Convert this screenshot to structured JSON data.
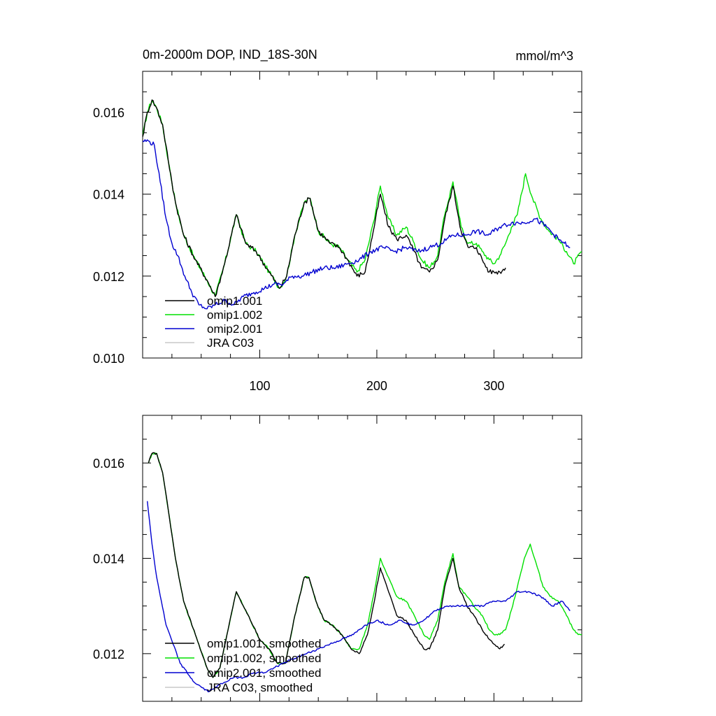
{
  "title": "0m-2000m DOP, IND_18S-30N",
  "units": "mmol/m^3",
  "colors": {
    "omip1_001": "#000000",
    "omip1_002": "#00e000",
    "omip2_001": "#0000d0",
    "jra_c03": "#c8c8c8"
  },
  "chart_data": [
    {
      "type": "line",
      "title": "0m-2000m DOP, IND_18S-30N",
      "units": "mmol/m^3",
      "xlim": [
        0,
        375
      ],
      "ylim": [
        0.01,
        0.017
      ],
      "xticks": [
        100,
        200,
        300
      ],
      "xtick_labels": [
        "100",
        "200",
        "300"
      ],
      "yticks": [
        0.01,
        0.012,
        0.014,
        0.016
      ],
      "ytick_labels": [
        "0.010",
        "0.012",
        "0.014",
        "0.016"
      ],
      "legend": [
        "omip1.001",
        "omip1.002",
        "omip2.001",
        "JRA C03"
      ],
      "noise": 0.00012,
      "series": [
        {
          "name": "omip1.002",
          "color": "#00e000",
          "x": [
            0,
            4,
            8,
            12,
            17,
            22,
            28,
            35,
            45,
            55,
            62,
            70,
            80,
            88,
            97,
            108,
            117,
            123,
            130,
            138,
            143,
            150,
            160,
            168,
            175,
            183,
            190,
            197,
            203,
            210,
            217,
            225,
            232,
            238,
            245,
            252,
            258,
            265,
            272,
            278,
            285,
            290,
            296,
            300,
            305,
            310,
            315,
            320,
            327,
            333,
            340,
            347,
            355,
            362,
            368,
            375
          ],
          "y": [
            0.0154,
            0.016,
            0.0163,
            0.0161,
            0.0157,
            0.0148,
            0.0138,
            0.013,
            0.0124,
            0.0119,
            0.0115,
            0.0123,
            0.0135,
            0.0128,
            0.0126,
            0.0121,
            0.0117,
            0.012,
            0.013,
            0.0138,
            0.0139,
            0.0131,
            0.0128,
            0.0127,
            0.0124,
            0.0121,
            0.0124,
            0.0133,
            0.0142,
            0.0134,
            0.013,
            0.0132,
            0.0128,
            0.0124,
            0.0122,
            0.0125,
            0.0135,
            0.0143,
            0.0132,
            0.0128,
            0.0128,
            0.0126,
            0.0124,
            0.0123,
            0.0125,
            0.0128,
            0.0132,
            0.0135,
            0.0145,
            0.0139,
            0.0134,
            0.0131,
            0.0129,
            0.0126,
            0.0123,
            0.0126
          ]
        },
        {
          "name": "omip1.001",
          "color": "#000000",
          "x": [
            0,
            4,
            8,
            12,
            17,
            22,
            28,
            35,
            45,
            55,
            62,
            70,
            80,
            88,
            97,
            108,
            117,
            123,
            130,
            138,
            143,
            150,
            160,
            168,
            175,
            183,
            190,
            197,
            203,
            210,
            217,
            225,
            232,
            238,
            245,
            252,
            258,
            265,
            272,
            278,
            285,
            290,
            296,
            300,
            305,
            310
          ],
          "y": [
            0.0154,
            0.016,
            0.0163,
            0.0161,
            0.0157,
            0.0148,
            0.0138,
            0.013,
            0.0124,
            0.0119,
            0.0115,
            0.0123,
            0.0135,
            0.0128,
            0.0126,
            0.0121,
            0.0117,
            0.012,
            0.013,
            0.0138,
            0.0139,
            0.0131,
            0.0128,
            0.0127,
            0.0124,
            0.012,
            0.0121,
            0.0131,
            0.014,
            0.0132,
            0.0129,
            0.013,
            0.0126,
            0.0122,
            0.0121,
            0.0124,
            0.0134,
            0.0142,
            0.0131,
            0.0127,
            0.0127,
            0.0124,
            0.0121,
            0.0121,
            0.0121,
            0.0122
          ]
        },
        {
          "name": "omip2.001",
          "color": "#0000d0",
          "x": [
            0,
            5,
            10,
            15,
            20,
            25,
            30,
            36,
            42,
            48,
            55,
            62,
            70,
            78,
            86,
            95,
            104,
            112,
            120,
            128,
            136,
            145,
            155,
            165,
            175,
            185,
            195,
            205,
            215,
            225,
            235,
            245,
            255,
            265,
            275,
            285,
            295,
            305,
            315,
            325,
            335,
            345,
            355,
            360,
            365
          ],
          "y": [
            0.0153,
            0.0153,
            0.0152,
            0.0143,
            0.0134,
            0.0128,
            0.0125,
            0.012,
            0.0116,
            0.0113,
            0.0112,
            0.0113,
            0.0114,
            0.0113,
            0.0115,
            0.0116,
            0.0117,
            0.0118,
            0.0118,
            0.012,
            0.012,
            0.0121,
            0.0122,
            0.0122,
            0.0123,
            0.0124,
            0.0126,
            0.0127,
            0.0126,
            0.0127,
            0.0126,
            0.0127,
            0.0128,
            0.013,
            0.013,
            0.0131,
            0.013,
            0.0132,
            0.0133,
            0.0133,
            0.0134,
            0.0132,
            0.0129,
            0.0128,
            0.0127
          ]
        },
        {
          "name": "JRA C03",
          "color": "#c8c8c8",
          "x": [],
          "y": []
        }
      ]
    },
    {
      "type": "line",
      "xlim": [
        0,
        375
      ],
      "ylim": [
        0.011,
        0.017
      ],
      "xticks": [
        100,
        200,
        300
      ],
      "xtick_labels": [
        "",
        "",
        ""
      ],
      "yticks": [
        0.012,
        0.014,
        0.016
      ],
      "ytick_labels": [
        "0.012",
        "0.014",
        "0.016"
      ],
      "legend": [
        "omip1.001, smoothed",
        "omip1.002, smoothed",
        "omip2.001, smoothed",
        "JRA C03, smoothed"
      ],
      "noise": 4e-05,
      "series": [
        {
          "name": "omip1.002, smoothed",
          "color": "#00e000",
          "x": [
            5,
            8,
            12,
            17,
            22,
            28,
            35,
            45,
            55,
            60,
            66,
            72,
            80,
            86,
            92,
            100,
            108,
            115,
            122,
            130,
            138,
            142,
            148,
            155,
            162,
            170,
            178,
            185,
            192,
            197,
            203,
            210,
            217,
            225,
            232,
            240,
            245,
            252,
            258,
            265,
            270,
            277,
            283,
            290,
            296,
            300,
            305,
            310,
            316,
            320,
            326,
            331,
            336,
            342,
            348,
            355,
            362,
            368,
            372,
            375
          ],
          "y": [
            0.016,
            0.0162,
            0.0162,
            0.0158,
            0.015,
            0.014,
            0.0131,
            0.0124,
            0.0117,
            0.0115,
            0.0117,
            0.0124,
            0.0133,
            0.013,
            0.0127,
            0.0123,
            0.0121,
            0.0118,
            0.0118,
            0.0128,
            0.0136,
            0.0136,
            0.0131,
            0.0127,
            0.0126,
            0.0124,
            0.0121,
            0.0121,
            0.0126,
            0.0132,
            0.014,
            0.0136,
            0.0132,
            0.0131,
            0.0128,
            0.0124,
            0.0123,
            0.0127,
            0.0135,
            0.0141,
            0.0134,
            0.0132,
            0.013,
            0.0128,
            0.0125,
            0.0124,
            0.0124,
            0.0125,
            0.013,
            0.0134,
            0.014,
            0.0143,
            0.0139,
            0.0134,
            0.0132,
            0.0131,
            0.0128,
            0.0125,
            0.0124,
            0.0124
          ]
        },
        {
          "name": "omip1.001, smoothed",
          "color": "#000000",
          "x": [
            5,
            8,
            12,
            17,
            22,
            28,
            35,
            45,
            55,
            60,
            66,
            72,
            80,
            86,
            92,
            100,
            108,
            115,
            122,
            130,
            138,
            142,
            148,
            155,
            162,
            170,
            178,
            185,
            192,
            197,
            203,
            210,
            217,
            225,
            232,
            240,
            245,
            252,
            258,
            265,
            270,
            277,
            283,
            290,
            296,
            300,
            305,
            309
          ],
          "y": [
            0.016,
            0.0162,
            0.0162,
            0.0158,
            0.015,
            0.014,
            0.0131,
            0.0124,
            0.0117,
            0.0115,
            0.0117,
            0.0124,
            0.0133,
            0.013,
            0.0127,
            0.0123,
            0.0121,
            0.0118,
            0.0118,
            0.0128,
            0.0136,
            0.0136,
            0.0131,
            0.0127,
            0.0126,
            0.0124,
            0.0121,
            0.012,
            0.0124,
            0.013,
            0.0138,
            0.0133,
            0.0128,
            0.0127,
            0.0124,
            0.0121,
            0.0121,
            0.0125,
            0.0134,
            0.014,
            0.0134,
            0.013,
            0.0128,
            0.0125,
            0.0123,
            0.0122,
            0.0121,
            0.0122
          ]
        },
        {
          "name": "omip2.001, smoothed",
          "color": "#0000d0",
          "x": [
            4,
            8,
            12,
            16,
            20,
            26,
            32,
            38,
            44,
            50,
            56,
            62,
            70,
            78,
            86,
            95,
            104,
            112,
            120,
            130,
            140,
            150,
            160,
            170,
            180,
            190,
            200,
            210,
            220,
            230,
            240,
            250,
            260,
            270,
            280,
            290,
            300,
            310,
            320,
            330,
            340,
            350,
            358,
            365
          ],
          "y": [
            0.0152,
            0.0143,
            0.0136,
            0.0131,
            0.0126,
            0.0122,
            0.0118,
            0.0116,
            0.0114,
            0.0113,
            0.0112,
            0.0113,
            0.0114,
            0.0115,
            0.0115,
            0.0116,
            0.0116,
            0.0117,
            0.0118,
            0.0119,
            0.012,
            0.0121,
            0.0122,
            0.0123,
            0.0124,
            0.0126,
            0.0127,
            0.0126,
            0.0127,
            0.0126,
            0.0127,
            0.0129,
            0.013,
            0.013,
            0.013,
            0.013,
            0.0131,
            0.0131,
            0.0133,
            0.0133,
            0.0132,
            0.013,
            0.0131,
            0.0129
          ]
        },
        {
          "name": "JRA C03, smoothed",
          "color": "#c8c8c8",
          "x": [],
          "y": []
        }
      ]
    }
  ]
}
